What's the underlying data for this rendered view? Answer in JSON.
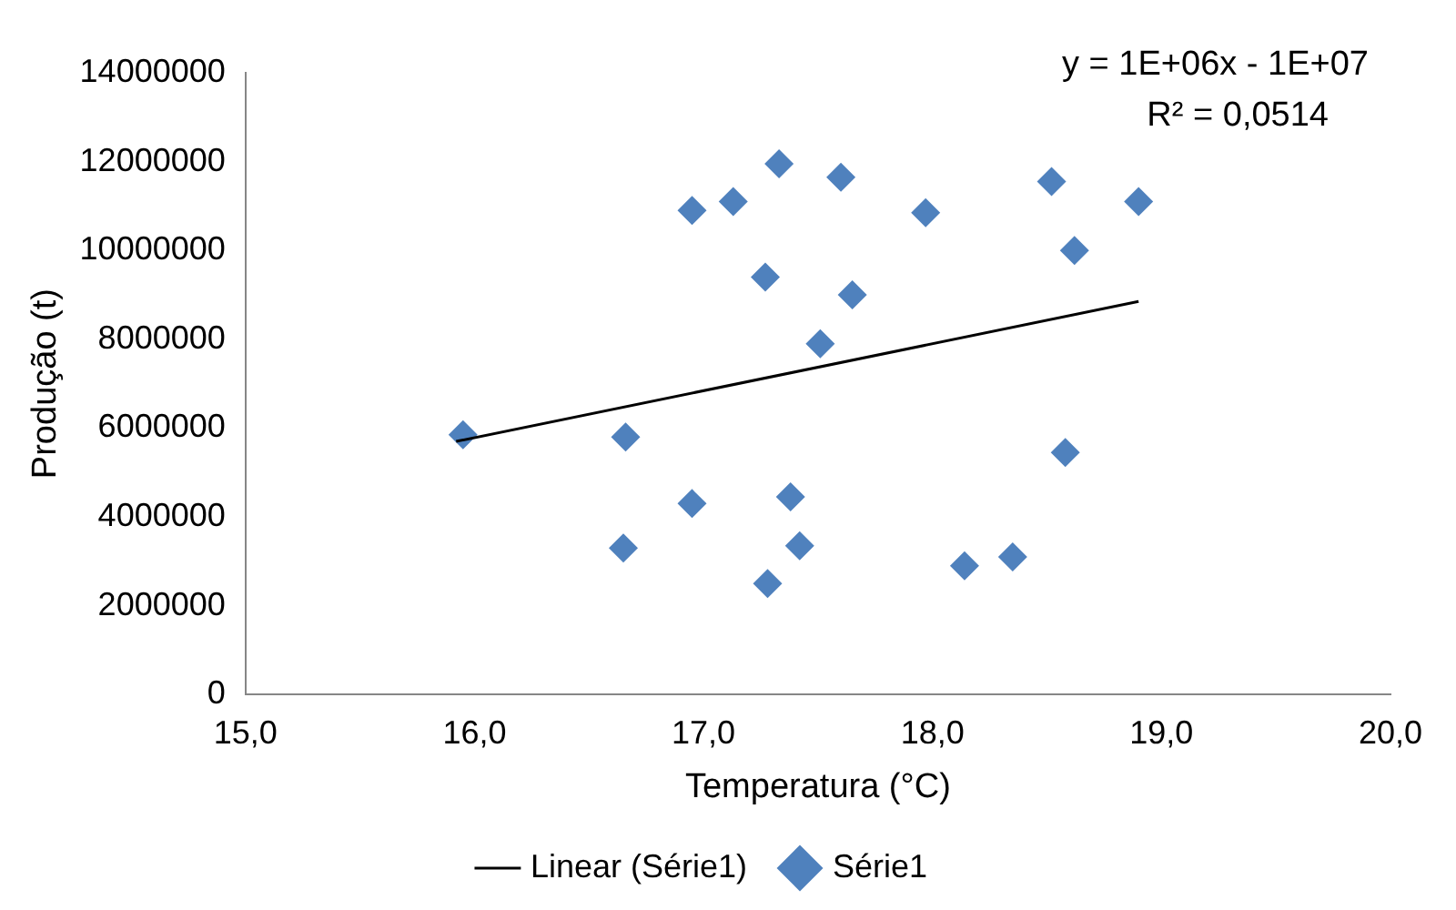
{
  "chart_data": {
    "type": "scatter",
    "xlabel": "Temperatura (°C)",
    "ylabel": "Produção (t)",
    "xlim": [
      15,
      20
    ],
    "xticks": [
      {
        "value": 15,
        "label": "15,0"
      },
      {
        "value": 16,
        "label": "16,0"
      },
      {
        "value": 17,
        "label": "17,0"
      },
      {
        "value": 18,
        "label": "18,0"
      },
      {
        "value": 19,
        "label": "19,0"
      },
      {
        "value": 20,
        "label": "20,0"
      }
    ],
    "ylim": [
      0,
      14000000
    ],
    "yticks": [
      0,
      2000000,
      4000000,
      6000000,
      8000000,
      10000000,
      12000000,
      14000000
    ],
    "grid": false,
    "legend": "bottom",
    "marker": "diamond",
    "annotations": [
      "y = 1E+06x - 1E+07",
      "R² = 0,0514"
    ],
    "series": [
      {
        "name": "Série1",
        "color": "#4f81bd",
        "x": [
          15.95,
          16.65,
          16.66,
          16.95,
          16.95,
          17.13,
          17.27,
          17.33,
          17.28,
          17.38,
          17.42,
          17.51,
          17.6,
          17.65,
          17.97,
          18.14,
          18.35,
          18.52,
          18.58,
          18.62,
          18.9
        ],
        "values": [
          5850000,
          3300000,
          5800000,
          4300000,
          10900000,
          11100000,
          9400000,
          11950000,
          2500000,
          4450000,
          3350000,
          7900000,
          11650000,
          9000000,
          10850000,
          2900000,
          3100000,
          11550000,
          5450000,
          10000000,
          11100000
        ]
      },
      {
        "name": "Linear (Série1)",
        "type": "line",
        "color": "#000000",
        "marker": "none",
        "x": [
          15.92,
          18.9
        ],
        "values": [
          5700000,
          8850000
        ]
      }
    ]
  }
}
